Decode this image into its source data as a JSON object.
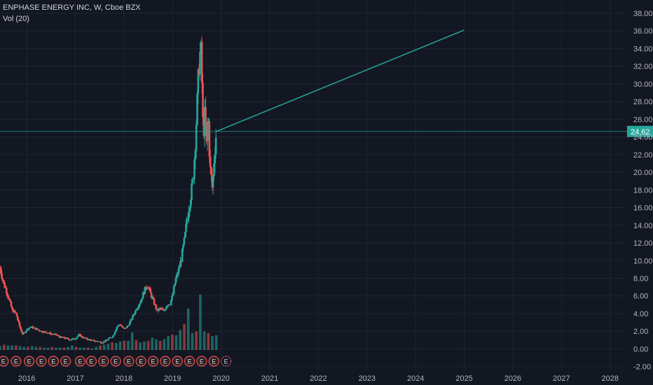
{
  "header": {
    "title": "ENPHASE ENERGY INC, W, Cboe BZX",
    "indicator": "Vol (20)"
  },
  "colors": {
    "background": "#131722",
    "grid": "#1f2433",
    "up": "#26a69a",
    "down": "#ef5350",
    "projection": "#26a69a",
    "price_badge": "#26a69a",
    "earnings": "#ef5350"
  },
  "chart_data": {
    "type": "candlestick",
    "symbol": "ENPHASE ENERGY INC",
    "interval": "W",
    "exchange": "Cboe BZX",
    "last_price": 24.62,
    "last_price_label": "24.62",
    "y_ticks": [
      "38.00",
      "36.00",
      "34.00",
      "32.00",
      "30.00",
      "28.00",
      "26.00",
      "24.00",
      "22.00",
      "20.00",
      "18.00",
      "16.00",
      "14.00",
      "12.00",
      "10.00",
      "8.00",
      "6.00",
      "4.00",
      "2.00",
      "0.00",
      "-2.00"
    ],
    "ylim": [
      -2.5,
      39.5
    ],
    "x_ticks": [
      "2016",
      "2017",
      "2018",
      "2019",
      "2020",
      "2021",
      "2022",
      "2023",
      "2024",
      "2025",
      "2026",
      "2027",
      "2028"
    ],
    "xlim": [
      2015.45,
      2028.35
    ],
    "price_path": [
      [
        2015.45,
        9.2
      ],
      [
        2015.52,
        7.5
      ],
      [
        2015.6,
        6.3
      ],
      [
        2015.7,
        4.4
      ],
      [
        2015.78,
        4.0
      ],
      [
        2015.85,
        2.6
      ],
      [
        2015.92,
        1.6
      ],
      [
        2016.0,
        2.2
      ],
      [
        2016.08,
        2.5
      ],
      [
        2016.18,
        2.3
      ],
      [
        2016.3,
        2.0
      ],
      [
        2016.4,
        1.9
      ],
      [
        2016.5,
        1.7
      ],
      [
        2016.6,
        1.6
      ],
      [
        2016.7,
        1.3
      ],
      [
        2016.8,
        1.2
      ],
      [
        2016.9,
        1.05
      ],
      [
        2017.0,
        1.2
      ],
      [
        2017.08,
        1.6
      ],
      [
        2017.15,
        1.3
      ],
      [
        2017.25,
        1.1
      ],
      [
        2017.35,
        0.95
      ],
      [
        2017.45,
        0.85
      ],
      [
        2017.55,
        0.75
      ],
      [
        2017.62,
        0.9
      ],
      [
        2017.7,
        1.2
      ],
      [
        2017.78,
        1.5
      ],
      [
        2017.85,
        2.5
      ],
      [
        2017.92,
        2.8
      ],
      [
        2018.0,
        2.2
      ],
      [
        2018.08,
        2.6
      ],
      [
        2018.15,
        3.3
      ],
      [
        2018.25,
        4.5
      ],
      [
        2018.35,
        5.5
      ],
      [
        2018.42,
        6.6
      ],
      [
        2018.48,
        7.3
      ],
      [
        2018.55,
        6.2
      ],
      [
        2018.62,
        5.2
      ],
      [
        2018.68,
        4.3
      ],
      [
        2018.75,
        4.6
      ],
      [
        2018.82,
        4.2
      ],
      [
        2018.88,
        5.0
      ],
      [
        2018.95,
        5.2
      ],
      [
        2019.0,
        6.0
      ],
      [
        2019.06,
        7.8
      ],
      [
        2019.12,
        8.8
      ],
      [
        2019.18,
        10.2
      ],
      [
        2019.25,
        12.5
      ],
      [
        2019.3,
        14.8
      ],
      [
        2019.36,
        17.0
      ],
      [
        2019.42,
        19.0
      ],
      [
        2019.46,
        22.5
      ],
      [
        2019.5,
        27.0
      ],
      [
        2019.54,
        32.0
      ],
      [
        2019.58,
        34.2
      ],
      [
        2019.6,
        31.0
      ],
      [
        2019.63,
        24.0
      ],
      [
        2019.66,
        26.5
      ],
      [
        2019.7,
        23.0
      ],
      [
        2019.73,
        27.0
      ],
      [
        2019.77,
        20.5
      ],
      [
        2019.8,
        19.2
      ],
      [
        2019.82,
        18.0
      ],
      [
        2019.86,
        22.0
      ],
      [
        2019.9,
        24.62
      ]
    ],
    "volume": [
      0.5,
      0.7,
      0.6,
      0.6,
      0.6,
      0.5,
      0.4,
      0.4,
      0.5,
      0.4,
      0.4,
      0.3,
      0.3,
      0.4,
      0.3,
      0.3,
      0.3,
      0.4,
      0.6,
      0.4,
      0.3,
      0.3,
      0.3,
      0.2,
      0.4,
      0.6,
      0.7,
      0.8,
      1.0,
      0.9,
      1.1,
      1.2,
      1.2,
      2.3,
      1.3,
      1.0,
      1.1,
      1.2,
      1.6,
      1.4,
      1.2,
      1.4,
      1.8,
      2.0,
      1.9,
      2.6,
      3.4,
      5.4,
      2.2,
      2.4,
      7.2,
      2.4,
      2.2,
      1.8,
      1.9
    ],
    "projection": {
      "from": [
        2019.9,
        24.62
      ],
      "to": [
        2025.0,
        36.1
      ]
    },
    "earnings_markers": [
      2015.52,
      2015.78,
      2016.05,
      2016.3,
      2016.55,
      2016.8,
      2017.1,
      2017.33,
      2017.58,
      2017.83,
      2018.1,
      2018.35,
      2018.6,
      2018.85,
      2019.1,
      2019.35,
      2019.6,
      2019.85
    ],
    "earnings_label": "E",
    "future_earnings_marker": 2020.1,
    "xlabel": "",
    "ylabel": ""
  }
}
